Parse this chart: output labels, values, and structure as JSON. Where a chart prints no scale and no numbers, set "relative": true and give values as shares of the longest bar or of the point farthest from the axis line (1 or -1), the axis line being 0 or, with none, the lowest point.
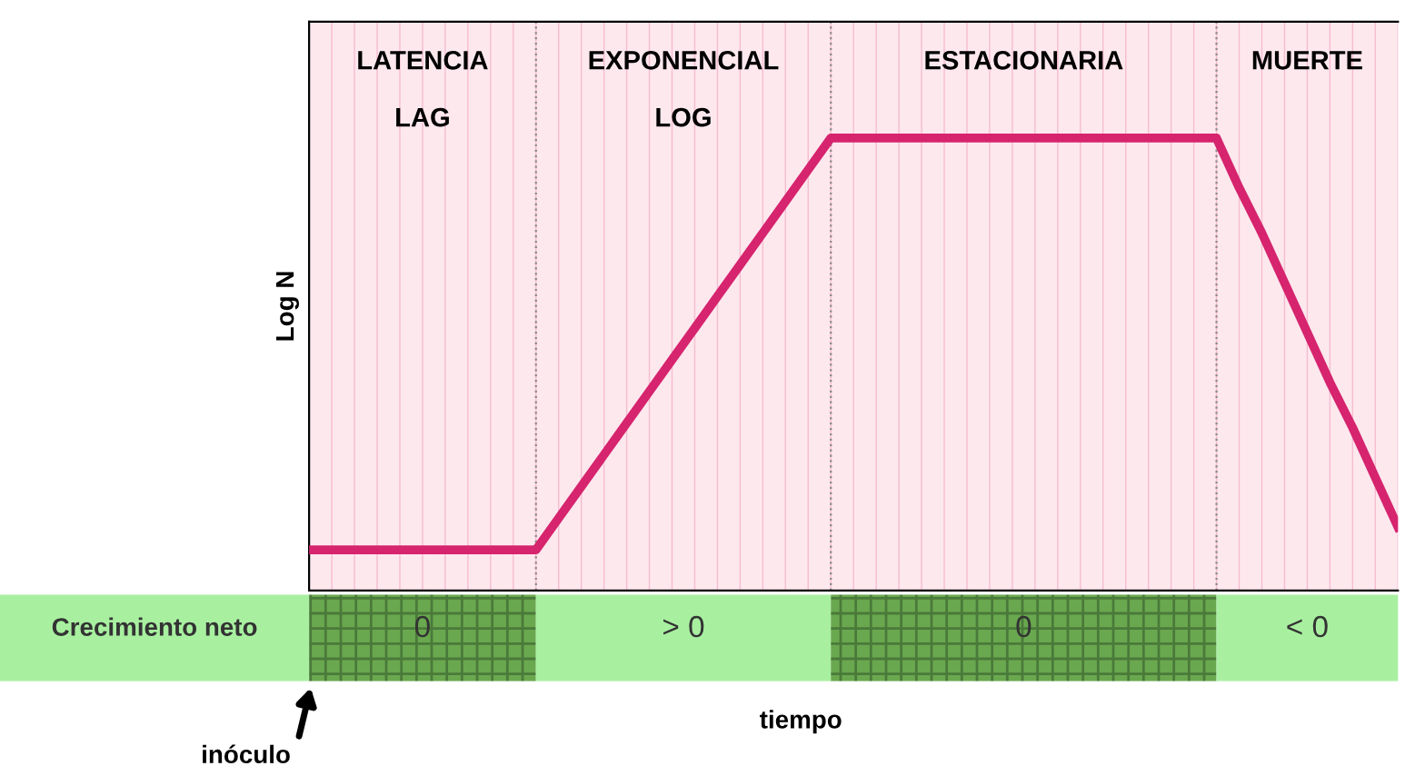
{
  "chart_data": {
    "type": "line",
    "relative": true,
    "ylabel": "Log N",
    "grid": "x",
    "categories": [
      null,
      null,
      null,
      null,
      null,
      null,
      null,
      null,
      null,
      null,
      null,
      null,
      null,
      null,
      null,
      null,
      null,
      null,
      null,
      null,
      null,
      null,
      null,
      null,
      null,
      null,
      null,
      null,
      null,
      null,
      null,
      null,
      null,
      null,
      null,
      null,
      null,
      null,
      null,
      null,
      null,
      null,
      null,
      null,
      null,
      null,
      null,
      null,
      null
    ],
    "series": [
      {
        "color": "#d6246e",
        "values": [
          0.09,
          0.09,
          0.09,
          0.09,
          0.09,
          0.09,
          0.09,
          0.09,
          0.09,
          0.09,
          0.09,
          0.16,
          0.23,
          0.3,
          0.37,
          0.44,
          0.51,
          0.58,
          0.65,
          0.72,
          0.79,
          0.86,
          0.93,
          1,
          1,
          1,
          1,
          1,
          1,
          1,
          1,
          1,
          1,
          1,
          1,
          1,
          1,
          1,
          1,
          1,
          1,
          0.89,
          0.79,
          0.68,
          0.57,
          0.46,
          0.36,
          0.25,
          0.14
        ]
      }
    ],
    "annotations": [
      "LATENCIA\n\nLAG",
      "EXPONENCIAL\n\nLOG",
      "ESTACIONARIA",
      "MUERTE",
      "Crecimiento neto",
      "0",
      "> 0",
      "0",
      "< 0",
      "inóculo",
      "tiempo"
    ]
  }
}
